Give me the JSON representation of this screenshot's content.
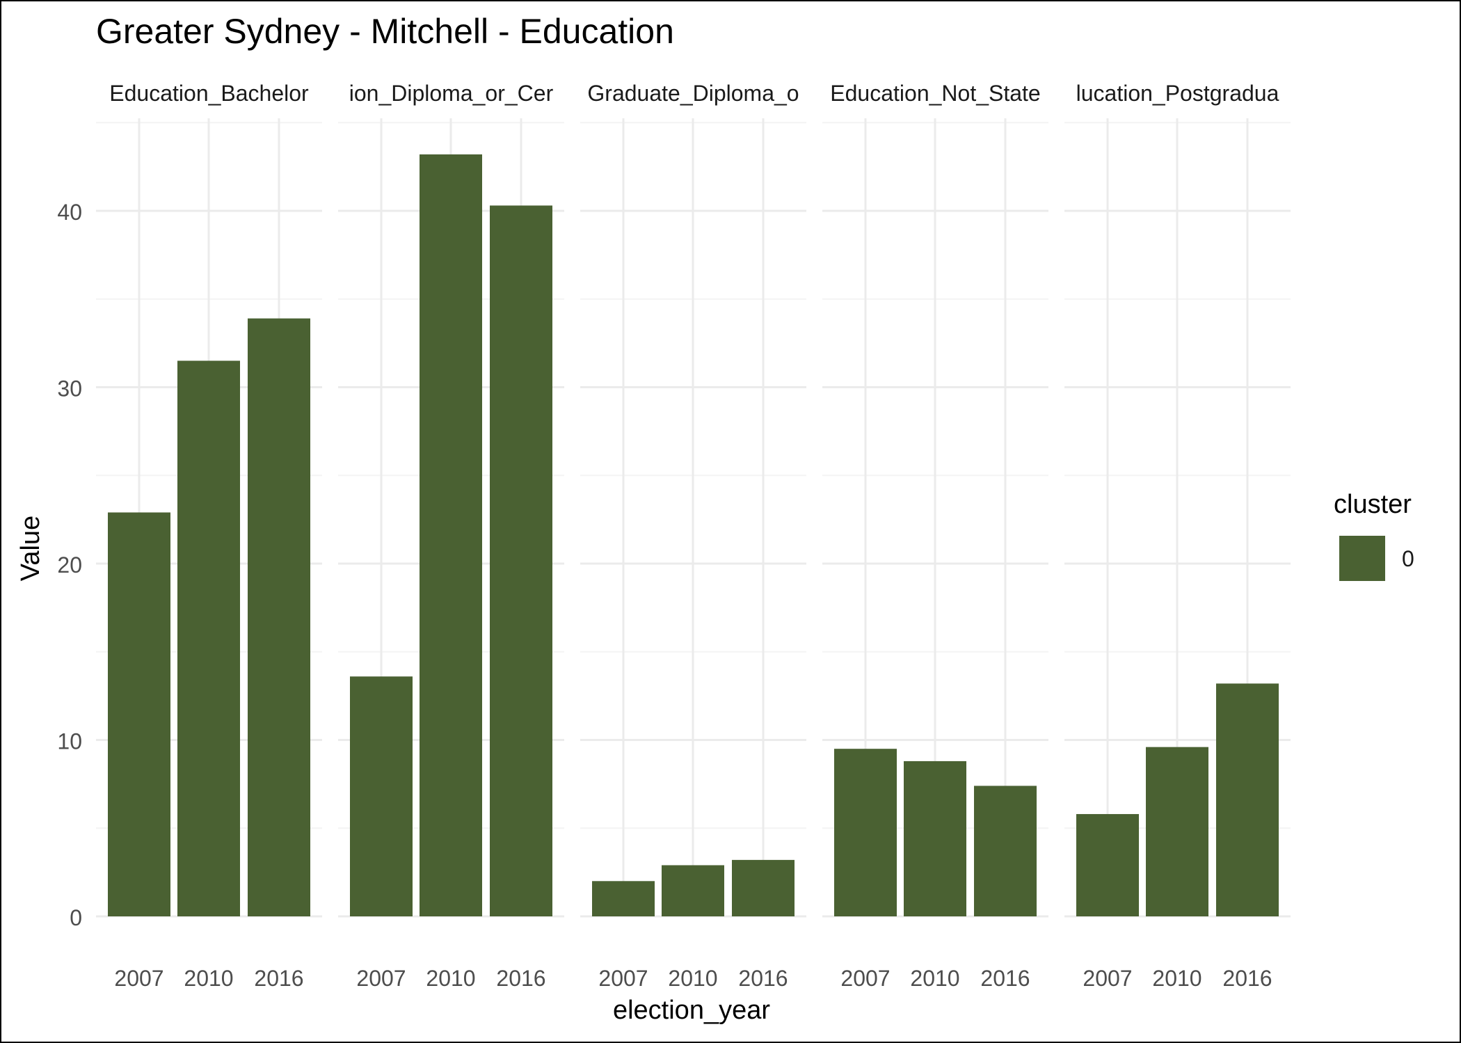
{
  "chart_data": {
    "type": "bar",
    "title": "Greater Sydney - Mitchell - Education",
    "xlabel": "election_year",
    "ylabel": "Value",
    "ylim": [
      0,
      45
    ],
    "y_ticks": [
      0,
      10,
      20,
      30,
      40
    ],
    "grid": true,
    "categories": [
      "2007",
      "2010",
      "2016"
    ],
    "facets": [
      {
        "name": "Education_Bachelor",
        "label": "Education_Bachelor",
        "values": [
          22.9,
          31.5,
          33.9
        ]
      },
      {
        "name": "Education_Diploma_or_Certificate",
        "label": "ion_Diploma_or_Cer",
        "values": [
          13.6,
          43.2,
          40.3
        ]
      },
      {
        "name": "Education_Graduate_Diploma_or_Certificate",
        "label": "Graduate_Diploma_o",
        "values": [
          2.0,
          2.9,
          3.2
        ]
      },
      {
        "name": "Education_Not_Stated",
        "label": "Education_Not_State",
        "values": [
          9.5,
          8.8,
          7.4
        ]
      },
      {
        "name": "Education_Postgraduate",
        "label": "lucation_Postgradua",
        "values": [
          5.8,
          9.6,
          13.2
        ]
      }
    ],
    "legend": {
      "title": "cluster",
      "placement": "right",
      "items": [
        {
          "label": "0",
          "color": "#4a6132"
        }
      ]
    },
    "colors": {
      "bar": "#4a6132",
      "grid_major": "#ebebeb",
      "grid_minor": "#f4f4f4",
      "tick_text": "#4d4d4d"
    }
  }
}
